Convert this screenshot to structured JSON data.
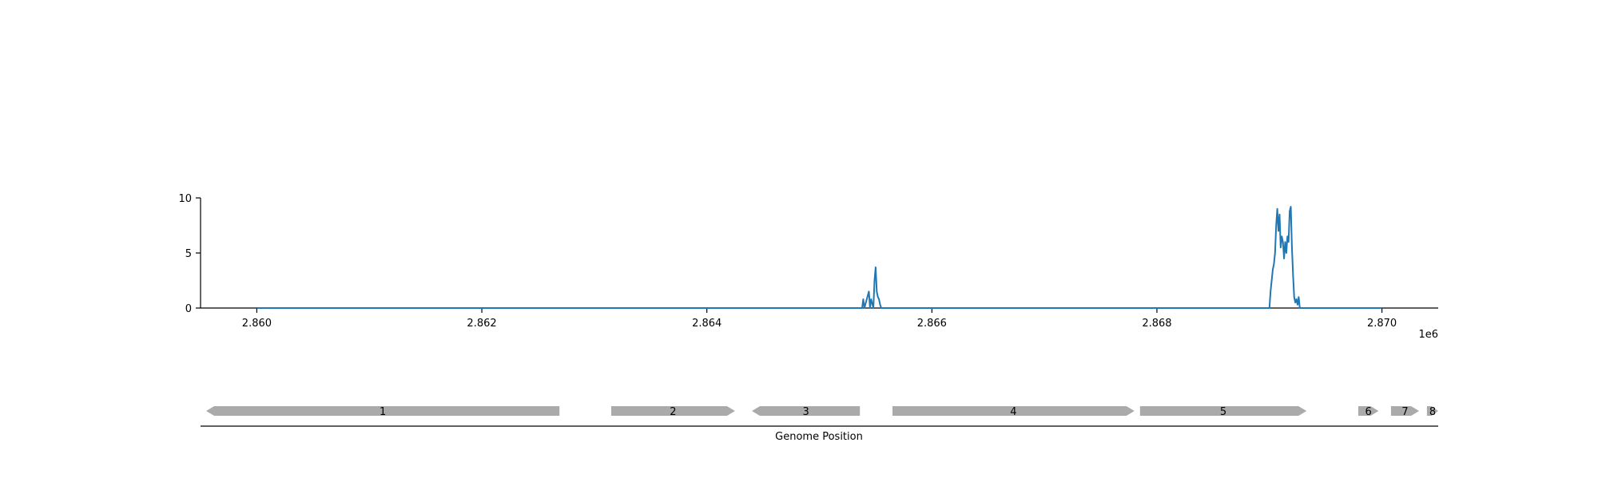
{
  "chart_data": [
    {
      "type": "line",
      "color": "#1f77b4",
      "xlim": [
        2859500,
        2870500
      ],
      "ylim": [
        0,
        10
      ],
      "x_ticks": [
        2860000,
        2862000,
        2864000,
        2866000,
        2868000,
        2870000
      ],
      "x_tick_labels": [
        "2.860",
        "2.862",
        "2.864",
        "2.866",
        "2.868",
        "2.870"
      ],
      "x_offset_label": "1e6",
      "y_ticks": [
        0,
        5,
        10
      ],
      "y_tick_labels": [
        "0",
        "5",
        "10"
      ],
      "grid": false,
      "series": [
        {
          "x": [
            2860000,
            2865380,
            2865390,
            2865400,
            2865440,
            2865450,
            2865460,
            2865480,
            2865490,
            2865500,
            2865510,
            2865520,
            2865530,
            2865540,
            2865550,
            2865560,
            2865570,
            2869000,
            2869010,
            2869020,
            2869030,
            2869040,
            2869050,
            2869060,
            2869070,
            2869080,
            2869090,
            2869100,
            2869110,
            2869120,
            2869130,
            2869140,
            2869150,
            2869160,
            2869170,
            2869180,
            2869190,
            2869200,
            2869210,
            2869220,
            2869230,
            2869240,
            2869250,
            2869260,
            2869270,
            2869280,
            2869290,
            2869300,
            2869310,
            2869320,
            2870000
          ],
          "y": [
            0,
            0,
            0.8,
            0,
            1.5,
            0,
            0.8,
            0,
            2.5,
            3.7,
            1.5,
            1.0,
            0.8,
            0.3,
            0,
            0,
            0,
            0,
            1.5,
            2.5,
            3.5,
            4.0,
            5.0,
            7.5,
            9.0,
            7.0,
            8.5,
            5.5,
            6.5,
            6.0,
            4.5,
            6.0,
            5.0,
            6.5,
            6.0,
            8.8,
            9.2,
            5.5,
            3.0,
            1.0,
            0.5,
            0.8,
            0.3,
            1.0,
            0,
            0,
            0,
            0,
            0,
            0,
            0
          ]
        }
      ]
    },
    {
      "type": "gene-track",
      "xlabel": "Genome Position",
      "color": "#aaaaaa",
      "genes": [
        {
          "label": "1",
          "start": 2859550,
          "end": 2862690,
          "strand": "-"
        },
        {
          "label": "2",
          "start": 2863150,
          "end": 2864250,
          "strand": "+"
        },
        {
          "label": "3",
          "start": 2864400,
          "end": 2865360,
          "strand": "-"
        },
        {
          "label": "4",
          "start": 2865650,
          "end": 2867800,
          "strand": "+"
        },
        {
          "label": "5",
          "start": 2867850,
          "end": 2869330,
          "strand": "+"
        },
        {
          "label": "6",
          "start": 2869790,
          "end": 2869970,
          "strand": "+"
        },
        {
          "label": "7",
          "start": 2870080,
          "end": 2870330,
          "strand": "+"
        },
        {
          "label": "8",
          "start": 2870400,
          "end": 2870500,
          "strand": "+"
        }
      ]
    }
  ]
}
